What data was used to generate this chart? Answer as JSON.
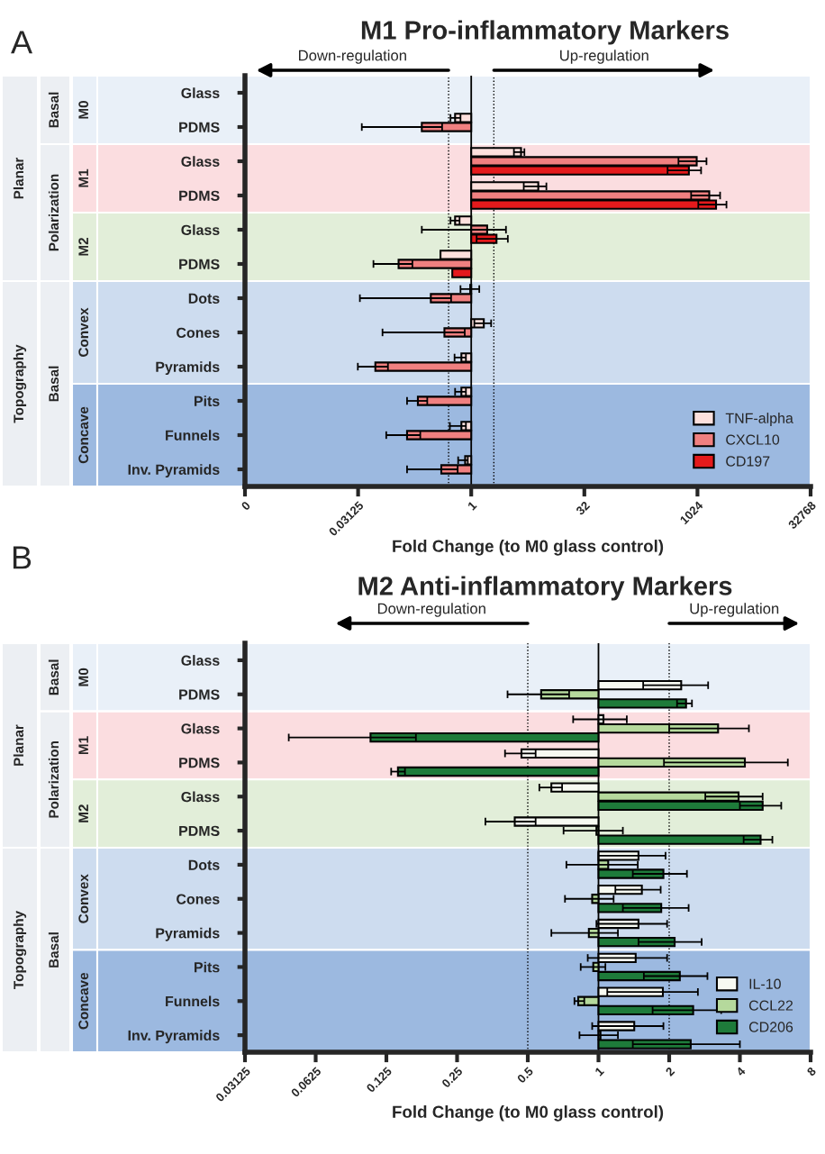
{
  "chart_data": [
    {
      "type": "bar",
      "orientation": "horizontal",
      "title": "M1 Pro-inflammatory Markers",
      "xlabel": "Fold Change (to M0 glass control)",
      "categories": [
        "Glass",
        "PDMS",
        "Glass",
        "PDMS",
        "Glass",
        "PDMS",
        "Dots",
        "Cones",
        "Pyramids",
        "Pits",
        "Funnels",
        "Inv. Pyramids"
      ],
      "series": [
        {
          "name": "TNF-alpha",
          "color": "#fde0dd",
          "base": [
            null,
            1,
            1,
            1,
            1,
            1,
            1,
            1,
            1,
            1,
            1,
            1
          ],
          "values": [
            null,
            -0.39,
            3.6,
            6.8,
            -0.39,
            -0.61,
            -0.03,
            0.47,
            -0.26,
            -0.26,
            -0.26,
            -0.17
          ],
          "errors": [
            null,
            [
              0.53,
              0.72
            ],
            [
              3.7,
              5.1
            ],
            [
              5.0,
              10
            ],
            [
              0.53,
              0.7
            ],
            null,
            [
              0.72,
              1.28
            ],
            [
              1.1,
              1.84
            ],
            [
              0.6,
              0.85
            ],
            [
              0.61,
              0.85
            ],
            [
              0.52,
              0.85
            ],
            [
              0.67,
              0.9
            ]
          ]
        },
        {
          "name": "CXCL10",
          "color": "#f08080",
          "base": [
            null,
            1,
            1,
            1,
            1,
            1,
            1,
            1,
            1,
            1,
            1,
            1
          ],
          "values": [
            null,
            -0.78,
            999,
            1469,
            0.63,
            -0.892,
            -0.71,
            -0.56,
            -0.947,
            -0.805,
            -0.86,
            -0.6
          ],
          "errors": [
            null,
            [
              0.035,
              0.41
            ],
            [
              572,
              1350
            ],
            [
              843,
              2048
            ],
            [
              0.22,
              2.9
            ],
            [
              0.05,
              0.165
            ],
            [
              0.033,
              0.54
            ],
            [
              0.066,
              0.82
            ],
            [
              0.031,
              0.078
            ],
            [
              0.14,
              0.26
            ],
            [
              0.074,
              0.21
            ],
            [
              0.14,
              0.66
            ]
          ]
        },
        {
          "name": "CD197",
          "color": "#e41a1c",
          "base": [
            null,
            null,
            1,
            1,
            1,
            1,
            null,
            null,
            null,
            null,
            null,
            null
          ],
          "values": [
            null,
            null,
            786,
            1809,
            1.17,
            -0.44,
            null,
            null,
            null,
            null,
            null,
            null
          ],
          "errors": [
            null,
            null,
            [
              410,
              1144
            ],
            [
              1050,
              2490
            ],
            [
              1.18,
              3.07
            ],
            null,
            null,
            null,
            null,
            null,
            null,
            null
          ]
        }
      ],
      "log": "x",
      "xlim": [
        0.0009765625,
        32768
      ],
      "xticks": [
        {
          "value": 0.0009765625,
          "label": "0"
        },
        0.03125,
        1,
        32,
        1024,
        32768
      ],
      "ref_lines": [
        {
          "axis": "x",
          "value": 0.5,
          "line_style": "dotted",
          "color": "#000000"
        },
        {
          "axis": "x",
          "value": 2,
          "line_style": "dotted",
          "color": "#000000"
        },
        {
          "axis": "x",
          "value": 1,
          "line_style": "solid",
          "color": "#000000"
        }
      ],
      "annotations": [
        "A",
        "Down-regulation",
        "Up-regulation",
        "Planar",
        "Topography",
        "Basal",
        "Polarization",
        "Basal",
        "M0",
        "M1",
        "M2",
        "Convex",
        "Concave"
      ],
      "legend": "bottom right"
    },
    {
      "type": "bar",
      "orientation": "horizontal",
      "title": "M2 Anti-inflammatory Markers",
      "xlabel": "Fold Change (to M0 glass control)",
      "categories": [
        "Glass",
        "PDMS",
        "Glass",
        "PDMS",
        "Glass",
        "PDMS",
        "Dots",
        "Cones",
        "Pyramids",
        "Pits",
        "Funnels",
        "Inv. Pyramids"
      ],
      "series": [
        {
          "name": "IL-10",
          "color": "#f7faf2",
          "base": [
            null,
            1,
            1,
            1,
            1,
            1,
            1,
            1,
            1,
            1,
            1,
            1
          ],
          "values": [
            null,
            1.25,
            0.05,
            -0.53,
            -0.37,
            -0.56,
            0.48,
            0.53,
            0.48,
            0.44,
            0.88,
            0.42
          ],
          "errors": [
            null,
            [
              1.55,
              2.93
            ],
            [
              0.78,
              1.32
            ],
            [
              0.4,
              0.54
            ],
            [
              0.56,
              0.7
            ],
            [
              0.33,
              0.54
            ],
            [
              1.0,
              1.93
            ],
            [
              1.18,
              1.84
            ],
            [
              0.98,
              1.96
            ],
            [
              0.9,
              1.96
            ],
            [
              1.09,
              2.65
            ],
            [
              0.94,
              1.89
            ]
          ]
        },
        {
          "name": "CCL22",
          "color": "#b5d99c",
          "base": [
            null,
            1,
            1,
            1,
            1,
            1,
            1,
            1,
            1,
            1,
            1,
            1
          ],
          "values": [
            null,
            -0.43,
            2.23,
            3.2,
            2.95,
            -0.02,
            0.1,
            -0.06,
            -0.09,
            -0.05,
            -0.18,
            0.02
          ],
          "errors": [
            null,
            [
              0.41,
              0.75
            ],
            [
              2.0,
              4.37
            ],
            [
              1.9,
              6.4
            ],
            [
              2.85,
              5.0
            ],
            [
              0.71,
              1.27
            ],
            [
              0.73,
              1.47
            ],
            [
              0.72,
              1.16
            ],
            [
              0.63,
              1.21
            ],
            [
              0.84,
              1.07
            ],
            [
              0.79,
              0.87
            ],
            [
              0.83,
              1.21
            ]
          ]
        },
        {
          "name": "CD206",
          "color": "#1e7b3a",
          "base": [
            null,
            1,
            1,
            1,
            1,
            1,
            1,
            1,
            1,
            1,
            1,
            1
          ],
          "values": [
            null,
            1.36,
            -0.893,
            -0.86,
            4.0,
            3.9,
            0.89,
            0.85,
            1.11,
            1.22,
            1.53,
            1.47
          ],
          "errors": [
            null,
            [
              2.16,
              2.5
            ],
            [
              0.048,
              0.167
            ],
            [
              0.131,
              0.15
            ],
            [
              4.0,
              6.0
            ],
            [
              4.15,
              5.5
            ],
            [
              1.4,
              2.38
            ],
            [
              1.27,
              2.42
            ],
            [
              1.48,
              2.75
            ],
            [
              1.56,
              2.91
            ],
            [
              1.7,
              3.33
            ],
            [
              1.4,
              4.0
            ]
          ]
        }
      ],
      "log": "x",
      "xlim": [
        0.03125,
        8
      ],
      "xticks": [
        0.03125,
        0.0625,
        0.125,
        0.25,
        0.5,
        1,
        2,
        4,
        8
      ],
      "ref_lines": [
        {
          "axis": "x",
          "value": 0.5,
          "line_style": "dotted",
          "color": "#000000"
        },
        {
          "axis": "x",
          "value": 2,
          "line_style": "dotted",
          "color": "#000000"
        },
        {
          "axis": "x",
          "value": 1,
          "line_style": "solid",
          "color": "#000000"
        }
      ],
      "annotations": [
        "B",
        "Down-regulation",
        "Up-regulation",
        "Planar",
        "Topography",
        "Basal",
        "Polarization",
        "Basal",
        "M0",
        "M1",
        "M2",
        "Convex",
        "Concave"
      ],
      "legend": "bottom right"
    }
  ]
}
